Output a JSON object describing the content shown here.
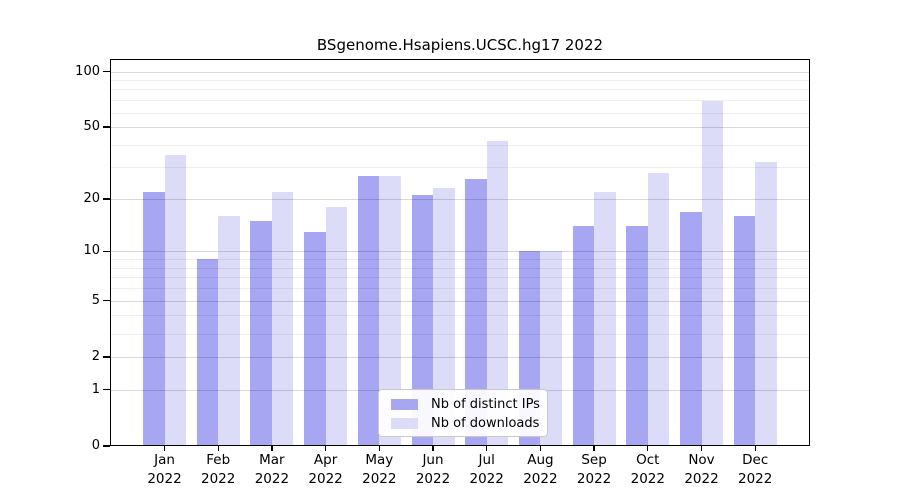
{
  "chart_data": {
    "type": "bar",
    "title": "BSgenome.Hsapiens.UCSC.hg17 2022",
    "year_label": "2022",
    "categories": [
      "Jan",
      "Feb",
      "Mar",
      "Apr",
      "May",
      "Jun",
      "Jul",
      "Aug",
      "Sep",
      "Oct",
      "Nov",
      "Dec"
    ],
    "series": [
      {
        "name": "Nb of distinct IPs",
        "color": "#a6a6f2",
        "values": [
          22,
          9,
          15,
          13,
          27,
          21,
          26,
          10,
          14,
          14,
          17,
          16
        ]
      },
      {
        "name": "Nb of downloads",
        "color": "#dcdcf9",
        "values": [
          35,
          16,
          22,
          18,
          27,
          23,
          42,
          10,
          22,
          28,
          69,
          32
        ]
      }
    ],
    "y_scale": "log10(x+1)",
    "y_ticks": [
      0,
      1,
      2,
      5,
      10,
      20,
      50,
      100
    ],
    "y_minor_gridlines": [
      3,
      4,
      6,
      7,
      8,
      9,
      30,
      40,
      60,
      70,
      80,
      90
    ],
    "ylim": [
      0,
      115
    ],
    "grid": "on",
    "legend_position": "bottom-center",
    "xlabel": "",
    "ylabel": ""
  }
}
